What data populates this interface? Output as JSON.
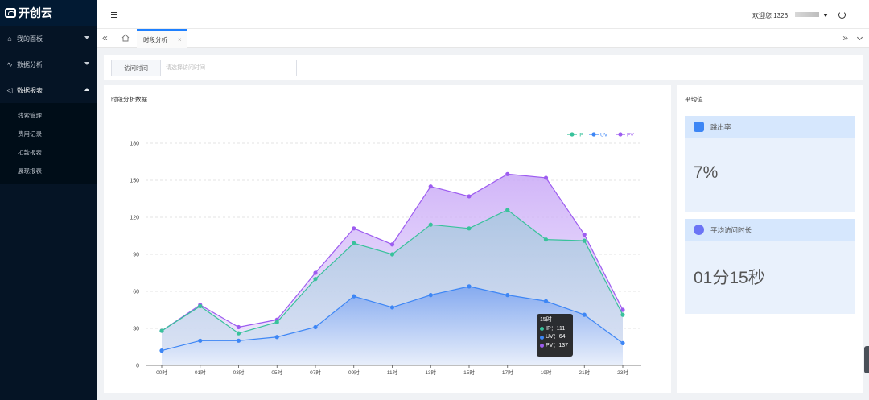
{
  "sidebar": {
    "logo": "开创云",
    "items": [
      {
        "label": "我的面板",
        "icon": "home-icon"
      },
      {
        "label": "数据分析",
        "icon": "pulse-icon"
      },
      {
        "label": "数据报表",
        "icon": "send-icon"
      }
    ],
    "subitems": [
      "线索管理",
      "费用记录",
      "扣款报表",
      "展现报表"
    ]
  },
  "header": {
    "welcome": "欢迎您 1326"
  },
  "tabs": {
    "active": "时段分析",
    "close": "×"
  },
  "filter": {
    "label": "访问时间",
    "placeholder": "请选择访问时间"
  },
  "chart_card": {
    "title": "时段分析数据"
  },
  "chart_data": {
    "type": "area",
    "categories": [
      "00时",
      "01时",
      "03时",
      "05时",
      "07时",
      "09时",
      "11时",
      "13时",
      "15时",
      "17时",
      "19时",
      "21时",
      "23时"
    ],
    "x_labels": [
      "00时",
      "01时",
      "03时",
      "05时",
      "07时",
      "09时",
      "11时",
      "13时",
      "15时",
      "17时",
      "19时",
      "21时",
      "23时"
    ],
    "ylim": [
      0,
      180
    ],
    "yticks": [
      0,
      30,
      60,
      90,
      120,
      150,
      180
    ],
    "legend_position": "top-right",
    "series": [
      {
        "name": "IP",
        "color": "#38c29b",
        "values": [
          28,
          48,
          26,
          35,
          70,
          99,
          90,
          114,
          111,
          126,
          102,
          101,
          41
        ]
      },
      {
        "name": "UV",
        "color": "#3d86f5",
        "values": [
          12,
          20,
          20,
          23,
          31,
          56,
          47,
          57,
          64,
          57,
          52,
          41,
          18
        ]
      },
      {
        "name": "PV",
        "color": "#9d5cf0",
        "values": [
          28,
          49,
          31,
          37,
          75,
          111,
          98,
          145,
          137,
          155,
          152,
          106,
          45
        ]
      }
    ],
    "tooltip": {
      "title": "15时",
      "rows": [
        {
          "label": "IP：",
          "value": "111",
          "color": "#38c29b"
        },
        {
          "label": "UV：",
          "value": "64",
          "color": "#3d86f5"
        },
        {
          "label": "PV：",
          "value": "137",
          "color": "#9d5cf0"
        }
      ]
    }
  },
  "averages": {
    "title": "平均值",
    "bounce": {
      "label": "跳出率",
      "value": "7%"
    },
    "duration": {
      "label": "平均访问时长",
      "value": "01分15秒"
    }
  }
}
